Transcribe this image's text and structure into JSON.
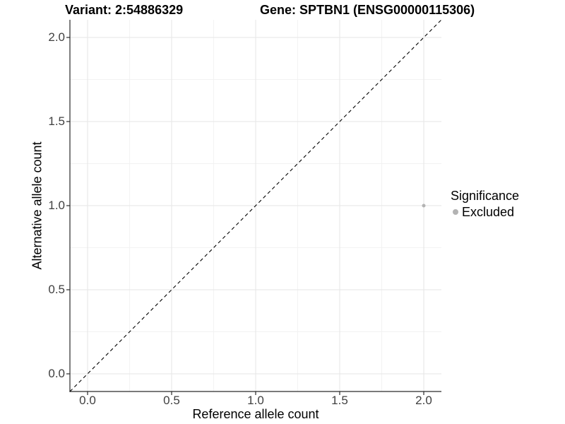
{
  "chart_data": {
    "type": "scatter",
    "titles": {
      "left": "Variant: 2:54886329",
      "right": "Gene: SPTBN1 (ENSG00000115306)"
    },
    "xlabel": "Reference allele count",
    "ylabel": "Alternative allele count",
    "xlim": [
      -0.105,
      2.105
    ],
    "ylim": [
      -0.105,
      2.105
    ],
    "x_ticks": {
      "values": [
        0.0,
        0.5,
        1.0,
        1.5,
        2.0
      ],
      "labels": [
        "0.0",
        "0.5",
        "1.0",
        "1.5",
        "2.0"
      ]
    },
    "y_ticks": {
      "values": [
        0.0,
        0.5,
        1.0,
        1.5,
        2.0
      ],
      "labels": [
        "0.0",
        "0.5",
        "1.0",
        "1.5",
        "2.0"
      ]
    },
    "minor_grid_values": [
      0.25,
      0.75,
      1.25,
      1.75
    ],
    "grid": {
      "show": true,
      "major_color": "#e6e6e6",
      "minor_color": "#f2f2f2"
    },
    "axis_line_color": "#2a2a2a",
    "reference_line": {
      "type": "identity",
      "slope": 1,
      "intercept": 0,
      "style": "dashed",
      "color": "#000000"
    },
    "series": [
      {
        "name": "Excluded",
        "color": "#b3b3b3",
        "points": [
          {
            "x": 2.0,
            "y": 1.0
          }
        ]
      }
    ],
    "legend": {
      "title": "Significance",
      "position": "right",
      "items": [
        {
          "label": "Excluded",
          "color": "#b3b3b3"
        }
      ]
    }
  }
}
